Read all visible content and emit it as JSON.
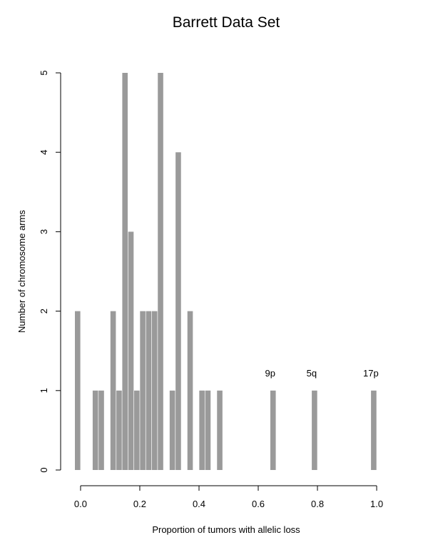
{
  "chart_data": {
    "type": "bar",
    "title": "Barrett Data Set",
    "x_label": "Proportion of tumors with allelic loss",
    "y_label": "Number of chromosome arms",
    "color": "#9a9a9a",
    "x": [
      -0.01,
      0.05,
      0.07,
      0.11,
      0.13,
      0.15,
      0.17,
      0.19,
      0.21,
      0.23,
      0.25,
      0.27,
      0.31,
      0.33,
      0.37,
      0.41,
      0.43,
      0.47,
      0.65,
      0.79,
      0.99
    ],
    "values": [
      2,
      1,
      1,
      2,
      1,
      5,
      3,
      1,
      2,
      2,
      2,
      5,
      1,
      4,
      2,
      1,
      1,
      1,
      1,
      1,
      1
    ],
    "xlim": [
      -0.03,
      1.03
    ],
    "ylim": [
      0,
      5
    ],
    "xticks": [
      {
        "value": 0,
        "label": "0.0"
      },
      0.2,
      0.4,
      0.6,
      0.8,
      {
        "value": 1,
        "label": "1.0"
      }
    ],
    "yticks": [
      0,
      1,
      2,
      3,
      4,
      5
    ],
    "annotations": [
      {
        "text": "9p",
        "x": 0.65,
        "y": 1
      },
      {
        "text": "5q",
        "x": 0.79,
        "y": 1
      },
      {
        "text": "17p",
        "x": 0.99,
        "y": 1
      }
    ]
  }
}
